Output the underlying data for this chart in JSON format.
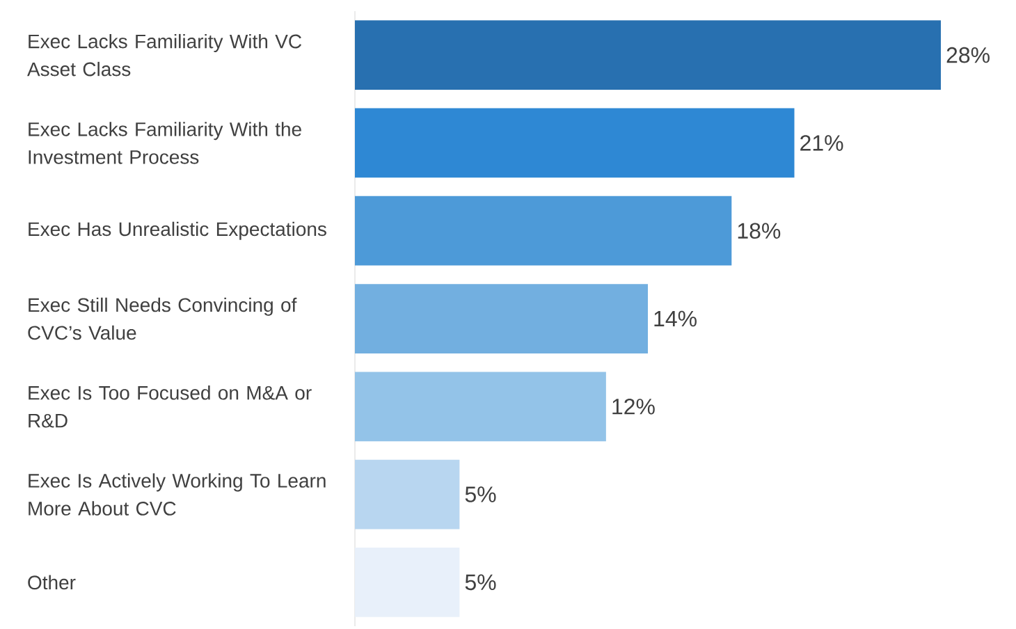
{
  "chart_data": {
    "type": "bar",
    "orientation": "horizontal",
    "categories": [
      "Exec Lacks Familiarity With VC Asset Class",
      "Exec Lacks Familiarity With the Investment Process",
      "Exec Has Unrealistic Expectations",
      "Exec Still Needs Convincing of CVC’s Value",
      "Exec Is Too Focused on M&A or R&D",
      "Exec Is Actively Working To Learn More About CVC",
      "Other"
    ],
    "values": [
      28,
      21,
      18,
      14,
      12,
      5,
      5
    ],
    "value_labels": [
      "28%",
      "21%",
      "18%",
      "14%",
      "12%",
      "5%",
      "5%"
    ],
    "colors": [
      "#2870b0",
      "#2e88d4",
      "#4d9ad8",
      "#72afe0",
      "#93c3e8",
      "#b8d6f0",
      "#e8f0fa"
    ],
    "grid": false
  }
}
